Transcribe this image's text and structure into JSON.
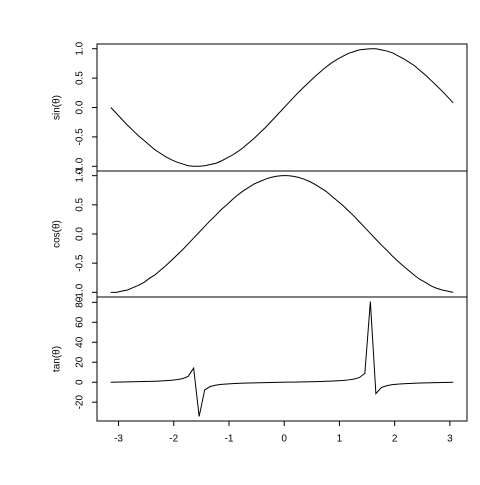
{
  "chart_data": [
    {
      "type": "line",
      "ylabel": "sin(θ)",
      "color": "#000000",
      "x": [
        -3.14,
        -3.04,
        -2.94,
        -2.84,
        -2.74,
        -2.64,
        -2.54,
        -2.44,
        -2.34,
        -2.24,
        -2.14,
        -2.04,
        -1.94,
        -1.84,
        -1.74,
        -1.64,
        -1.54,
        -1.44,
        -1.34,
        -1.24,
        -1.14,
        -1.04,
        -0.94,
        -0.84,
        -0.74,
        -0.64,
        -0.54,
        -0.44,
        -0.34,
        -0.24,
        -0.14,
        -0.04,
        0.06,
        0.16,
        0.26,
        0.36,
        0.46,
        0.56,
        0.66,
        0.76,
        0.86,
        0.96,
        1.06,
        1.16,
        1.26,
        1.36,
        1.46,
        1.56,
        1.66,
        1.76,
        1.86,
        1.96,
        2.06,
        2.16,
        2.26,
        2.36,
        2.46,
        2.56,
        2.66,
        2.76,
        2.86,
        2.96,
        3.06
      ],
      "values": [
        0,
        -0.1,
        -0.2,
        -0.3,
        -0.39,
        -0.48,
        -0.56,
        -0.64,
        -0.72,
        -0.78,
        -0.84,
        -0.89,
        -0.93,
        -0.96,
        -0.99,
        -1.0,
        -1.0,
        -0.99,
        -0.97,
        -0.95,
        -0.91,
        -0.86,
        -0.81,
        -0.75,
        -0.68,
        -0.6,
        -0.52,
        -0.43,
        -0.34,
        -0.24,
        -0.14,
        -0.04,
        0.06,
        0.16,
        0.26,
        0.35,
        0.44,
        0.53,
        0.61,
        0.69,
        0.76,
        0.82,
        0.87,
        0.92,
        0.95,
        0.98,
        0.99,
        1.0,
        1.0,
        0.98,
        0.96,
        0.93,
        0.88,
        0.83,
        0.77,
        0.71,
        0.63,
        0.55,
        0.46,
        0.37,
        0.28,
        0.18,
        0.08
      ],
      "xlim": [
        -3.39,
        3.31
      ],
      "ylim": [
        -1.08,
        1.08
      ],
      "yticks": [
        {
          "value": -1,
          "label": "-1.0"
        },
        {
          "value": -0.5,
          "label": "-0.5"
        },
        {
          "value": 0,
          "label": "0.0"
        },
        {
          "value": 0.5,
          "label": "0.5"
        },
        {
          "value": 1,
          "label": "1.0"
        }
      ]
    },
    {
      "type": "line",
      "ylabel": "cos(θ)",
      "color": "#000000",
      "x": [
        -3.14,
        -3.04,
        -2.94,
        -2.84,
        -2.74,
        -2.64,
        -2.54,
        -2.44,
        -2.34,
        -2.24,
        -2.14,
        -2.04,
        -1.94,
        -1.84,
        -1.74,
        -1.64,
        -1.54,
        -1.44,
        -1.34,
        -1.24,
        -1.14,
        -1.04,
        -0.94,
        -0.84,
        -0.74,
        -0.64,
        -0.54,
        -0.44,
        -0.34,
        -0.24,
        -0.14,
        -0.04,
        0.06,
        0.16,
        0.26,
        0.36,
        0.46,
        0.56,
        0.66,
        0.76,
        0.86,
        0.96,
        1.06,
        1.16,
        1.26,
        1.36,
        1.46,
        1.56,
        1.66,
        1.76,
        1.86,
        1.96,
        2.06,
        2.16,
        2.26,
        2.36,
        2.46,
        2.56,
        2.66,
        2.76,
        2.86,
        2.96,
        3.06
      ],
      "values": [
        -1.0,
        -1.0,
        -0.98,
        -0.96,
        -0.92,
        -0.88,
        -0.83,
        -0.76,
        -0.7,
        -0.62,
        -0.54,
        -0.45,
        -0.36,
        -0.27,
        -0.17,
        -0.07,
        0.03,
        0.13,
        0.23,
        0.32,
        0.42,
        0.5,
        0.59,
        0.67,
        0.74,
        0.8,
        0.86,
        0.9,
        0.94,
        0.97,
        0.99,
        1.0,
        1.0,
        0.99,
        0.97,
        0.94,
        0.9,
        0.85,
        0.79,
        0.73,
        0.65,
        0.57,
        0.49,
        0.4,
        0.31,
        0.21,
        0.11,
        0.01,
        -0.09,
        -0.19,
        -0.28,
        -0.38,
        -0.47,
        -0.55,
        -0.63,
        -0.71,
        -0.78,
        -0.83,
        -0.89,
        -0.93,
        -0.96,
        -0.98,
        -1.0
      ],
      "xlim": [
        -3.39,
        3.31
      ],
      "ylim": [
        -1.08,
        1.08
      ],
      "yticks": [
        {
          "value": -1,
          "label": "-1.0"
        },
        {
          "value": -0.5,
          "label": "-0.5"
        },
        {
          "value": 0,
          "label": "0.0"
        },
        {
          "value": 0.5,
          "label": "0.5"
        },
        {
          "value": 1,
          "label": "1.0"
        }
      ]
    },
    {
      "type": "line",
      "ylabel": "tan(θ)",
      "color": "#000000",
      "x": [
        -3.14,
        -3.04,
        -2.94,
        -2.84,
        -2.74,
        -2.64,
        -2.54,
        -2.44,
        -2.34,
        -2.24,
        -2.14,
        -2.04,
        -1.94,
        -1.84,
        -1.74,
        -1.64,
        -1.54,
        -1.44,
        -1.34,
        -1.24,
        -1.14,
        -1.04,
        -0.94,
        -0.84,
        -0.74,
        -0.64,
        -0.54,
        -0.44,
        -0.34,
        -0.24,
        -0.14,
        -0.04,
        0.06,
        0.16,
        0.26,
        0.36,
        0.46,
        0.56,
        0.66,
        0.76,
        0.86,
        0.96,
        1.06,
        1.16,
        1.26,
        1.36,
        1.46,
        1.56,
        1.66,
        1.76,
        1.86,
        1.96,
        2.06,
        2.16,
        2.26,
        2.36,
        2.46,
        2.56,
        2.66,
        2.76,
        2.86,
        2.96,
        3.06
      ],
      "values": [
        0,
        0.1,
        0.2,
        0.31,
        0.42,
        0.55,
        0.68,
        0.84,
        1.03,
        1.26,
        1.56,
        1.96,
        2.57,
        3.6,
        5.8,
        14.1,
        -34.23,
        -7.7,
        -4.29,
        -2.93,
        -2.19,
        -1.71,
        -1.37,
        -1.12,
        -0.92,
        -0.75,
        -0.6,
        -0.47,
        -0.36,
        -0.25,
        -0.14,
        -0.04,
        0.06,
        0.16,
        0.26,
        0.37,
        0.49,
        0.62,
        0.77,
        0.95,
        1.16,
        1.42,
        1.78,
        2.29,
        3.1,
        4.64,
        8.86,
        80.71,
        -11.38,
        -5.27,
        -3.38,
        -2.45,
        -1.89,
        -1.5,
        -1.22,
        -1.0,
        -0.81,
        -0.66,
        -0.52,
        -0.4,
        -0.29,
        -0.19,
        -0.08
      ],
      "xlim": [
        -3.39,
        3.31
      ],
      "ylim": [
        -38.8,
        85.3
      ],
      "yticks": [
        -20,
        0,
        20,
        40,
        60,
        80
      ],
      "xticks": [
        -3,
        -2,
        -1,
        0,
        1,
        2,
        3
      ]
    }
  ]
}
